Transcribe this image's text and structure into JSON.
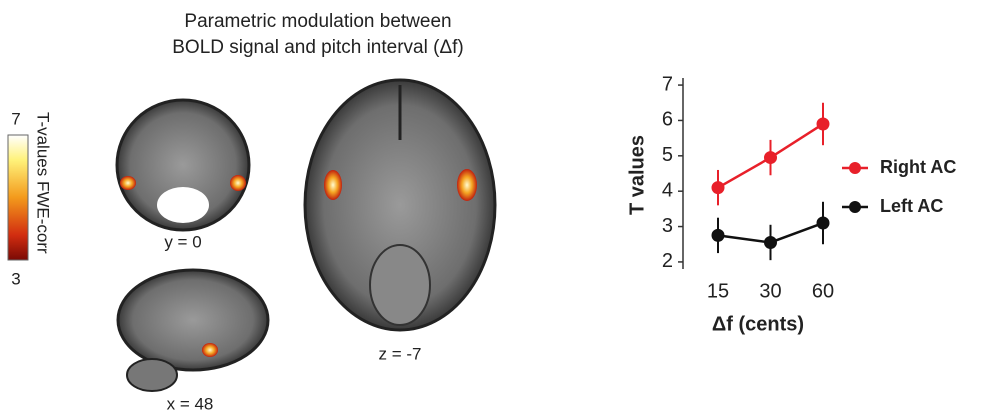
{
  "title_lines": [
    "Parametric modulation between",
    "BOLD signal and pitch interval (Δf)"
  ],
  "colorbar": {
    "label": "T-values FWE-corr",
    "ticks": [
      7,
      3
    ]
  },
  "slices": [
    {
      "label": "y = 0"
    },
    {
      "label": "x = 48"
    },
    {
      "label": "z = -7"
    }
  ],
  "chart_data": {
    "type": "line",
    "x_label": "Δf  (cents)",
    "y_label": "T values",
    "categories": [
      "15",
      "30",
      "60"
    ],
    "series": [
      {
        "name": "Right AC",
        "color": "#e8202a",
        "values": [
          4.1,
          4.95,
          5.9
        ],
        "errors": [
          0.5,
          0.5,
          0.6
        ]
      },
      {
        "name": "Left AC",
        "color": "#111111",
        "values": [
          2.75,
          2.55,
          3.1
        ],
        "errors": [
          0.5,
          0.5,
          0.6
        ]
      }
    ],
    "ylim": [
      1.8,
      7.2
    ],
    "yticks": [
      2,
      3,
      4,
      5,
      6,
      7
    ],
    "legend": "right"
  }
}
